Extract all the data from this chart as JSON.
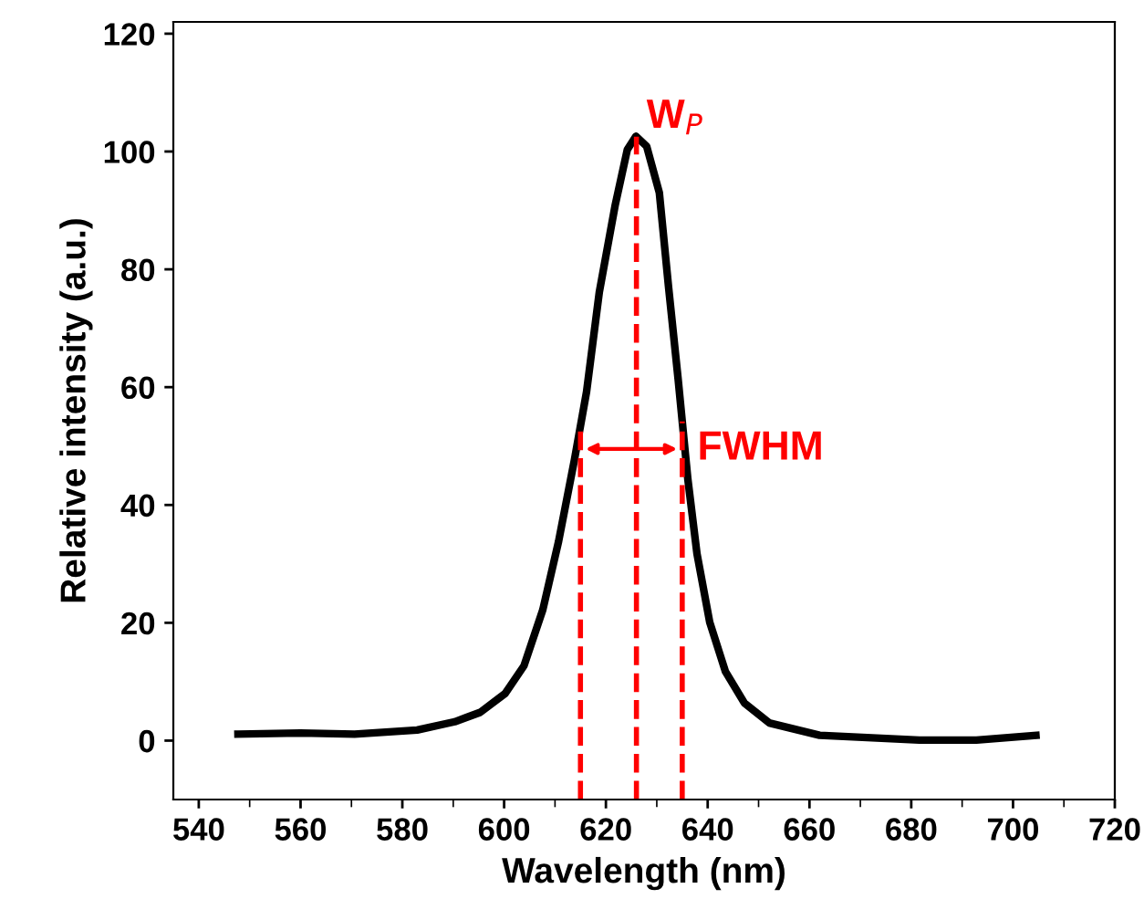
{
  "chart_data": {
    "type": "line",
    "xlabel": "Wavelength (nm)",
    "ylabel": "Relative intensity (a.u.)",
    "xlim": [
      535,
      720
    ],
    "xticks": [
      540,
      560,
      580,
      600,
      620,
      640,
      660,
      680,
      700,
      720
    ],
    "ylim": [
      -10,
      122
    ],
    "yticks": [
      0,
      20,
      40,
      60,
      80,
      100,
      120
    ],
    "grid": false,
    "legend": false,
    "marker": "none",
    "line_style": "solid",
    "series": [
      {
        "color": "#000000",
        "x": [
          547.7,
          560,
          570.6,
          582.9,
          590.3,
          595.3,
          600.2,
          603.9,
          607.6,
          610.7,
          613.8,
          616.2,
          618.7,
          621.8,
          624.2,
          625.9,
          628,
          630.5,
          632.3,
          634.2,
          636.1,
          637.9,
          640.4,
          643.5,
          647.2,
          652.1,
          662,
          681.6,
          692.8,
          704.5
        ],
        "values": [
          1.1,
          1.3,
          1.1,
          1.8,
          3.2,
          4.8,
          8.0,
          12.7,
          22.2,
          33.8,
          47.6,
          59.2,
          76.1,
          90.8,
          100.3,
          102.6,
          100.9,
          93,
          77.1,
          61.3,
          44.4,
          31.7,
          20.1,
          11.7,
          6.4,
          3.0,
          0.9,
          0.1,
          0.1,
          0.9
        ]
      }
    ],
    "ref_lines": [
      {
        "axis": "x",
        "value": 615,
        "color": "#ff0000",
        "line_style": "dashed"
      },
      {
        "axis": "x",
        "value": 626,
        "color": "#ff0000",
        "line_style": "dashed"
      },
      {
        "axis": "x",
        "value": 635,
        "color": "#ff0000",
        "line_style": "dashed"
      }
    ],
    "annotations": [
      {
        "text": "W$_{P}$",
        "x": 626,
        "y": 102.6
      },
      {
        "text": "FWHM",
        "x": 635,
        "y": 49.5
      }
    ]
  }
}
